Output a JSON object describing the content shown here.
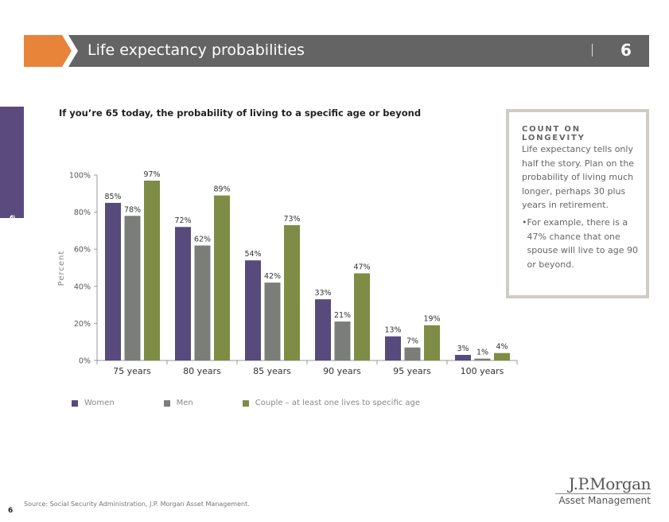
{
  "header": {
    "title": "Life expectancy probabilities",
    "page_number": "6"
  },
  "side_tab": "Retirement landscape",
  "sidebar_box": {
    "heading": "COUNT ON LONGEVITY",
    "body": "Life expectancy tells only half the story. Plan on the probability of living much longer, perhaps 30 plus years in retirement.",
    "bullet": "For example, there is a 47% chance that one spouse will live to age 90 or beyond."
  },
  "footer": {
    "source": "Source: Social Security Administration, J.P. Morgan Asset Management.",
    "page": "6",
    "logo_line1": "J.P.Morgan",
    "logo_line2": "Asset Management"
  },
  "chart_data": {
    "type": "bar",
    "title": "If you’re 65 today, the probability of living to a specific age or beyond",
    "ylabel": "Percent",
    "xlabel": "",
    "ylim": [
      0,
      100
    ],
    "yticks": [
      "0%",
      "20%",
      "40%",
      "60%",
      "80%",
      "100%"
    ],
    "categories": [
      "75 years",
      "80 years",
      "85 years",
      "90 years",
      "95 years",
      "100 years"
    ],
    "series": [
      {
        "name": "Women",
        "color": "#574a7c",
        "values": [
          85,
          72,
          54,
          33,
          13,
          3
        ]
      },
      {
        "name": "Men",
        "color": "#7b7d78",
        "values": [
          78,
          62,
          42,
          21,
          7,
          1
        ]
      },
      {
        "name": "Couple – at least one lives to specific age",
        "color": "#7e8c45",
        "values": [
          97,
          89,
          73,
          47,
          19,
          4
        ]
      }
    ],
    "grid": false,
    "legend": "bottom-left"
  }
}
